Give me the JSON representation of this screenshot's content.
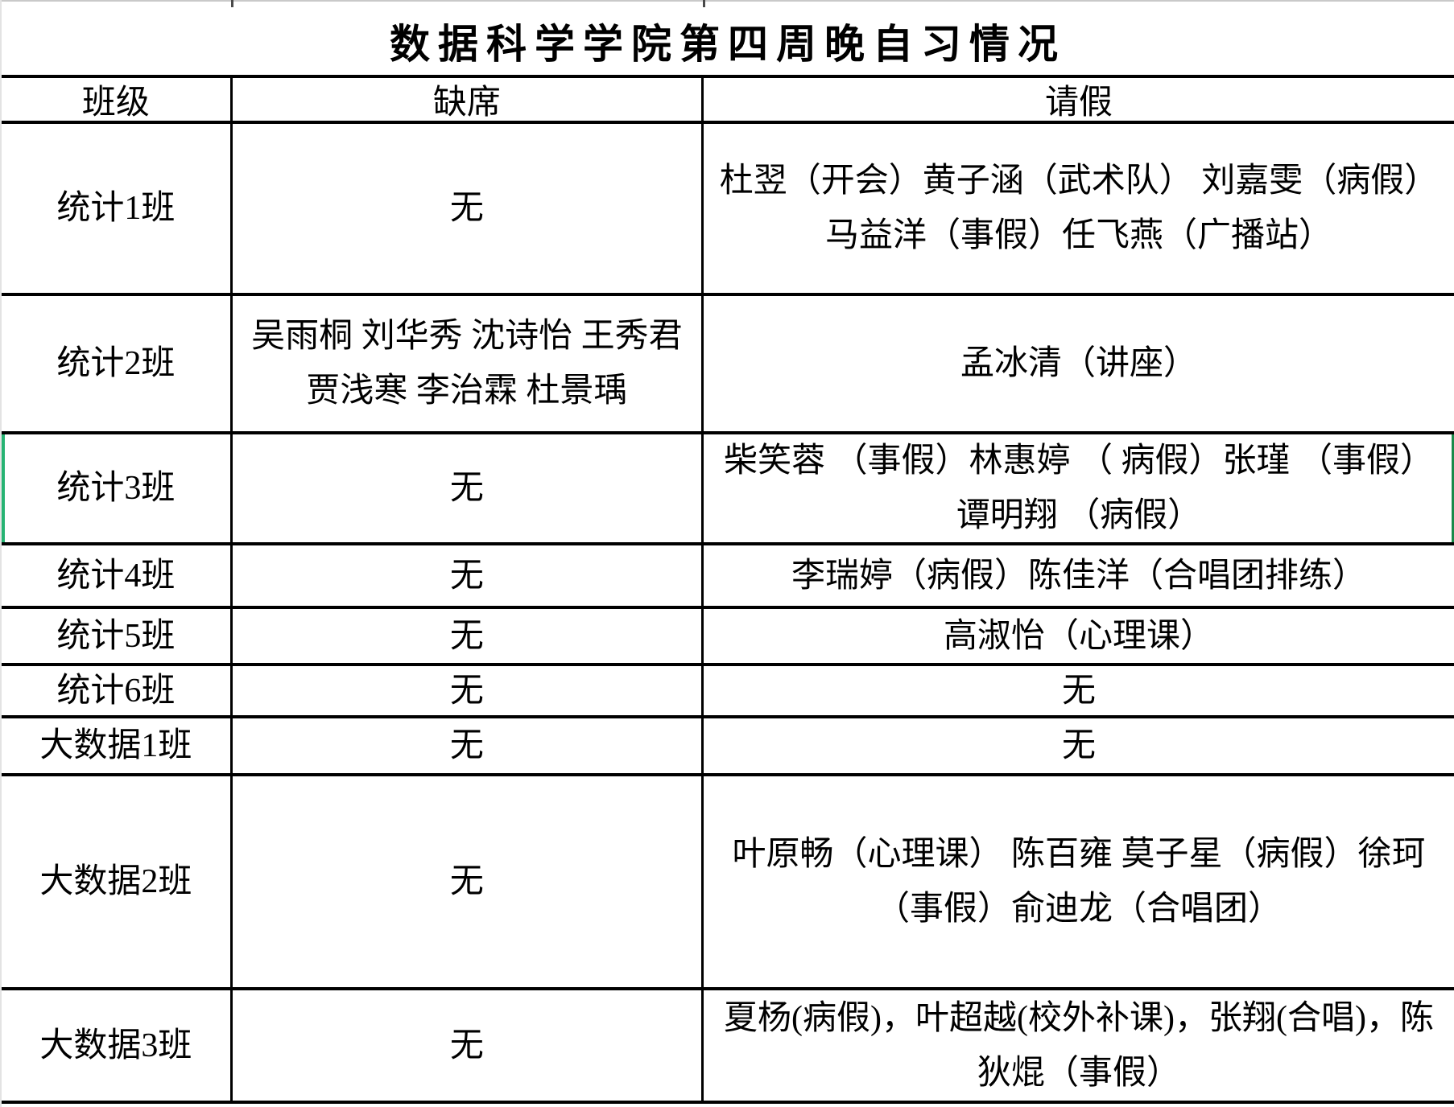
{
  "sheet": {
    "title": "数据科学学院第四周晚自习情况",
    "columns": [
      {
        "label": "班级"
      },
      {
        "label": "缺席"
      },
      {
        "label": "请假"
      }
    ],
    "rows": [
      {
        "class_name": "统计1班",
        "absent": "无",
        "leave": "杜翌（开会）黄子涵（武术队） 刘嘉雯（病假） 马益洋（事假）任飞燕（广播站）"
      },
      {
        "class_name": "统计2班",
        "absent": "吴雨桐 刘华秀 沈诗怡 王秀君 贾浅寒 李治霖 杜景瑀",
        "leave": "孟冰清（讲座）"
      },
      {
        "class_name": "统计3班",
        "absent": "无",
        "leave": "柴笑蓉 （事假）林惠婷 （ 病假）张瑾 （事假）谭明翔 （病假）"
      },
      {
        "class_name": "统计4班",
        "absent": "无",
        "leave": "李瑞婷（病假）陈佳洋（合唱团排练）"
      },
      {
        "class_name": "统计5班",
        "absent": "无",
        "leave": "高淑怡（心理课）"
      },
      {
        "class_name": "统计6班",
        "absent": "无",
        "leave": "无"
      },
      {
        "class_name": "大数据1班",
        "absent": "无",
        "leave": "无"
      },
      {
        "class_name": "大数据2班",
        "absent": "无",
        "leave": "叶原畅（心理课） 陈百雍 莫子星（病假）徐珂（事假）俞迪龙（合唱团）"
      },
      {
        "class_name": "大数据3班",
        "absent": "无",
        "leave": "夏杨(病假)，叶超越(校外补课)，张翔(合唱)，陈狄焜（事假）"
      }
    ]
  },
  "indicators": {
    "selected_row": "统计3班",
    "error_marker": {
      "row": "大数据2班",
      "column": "请假"
    }
  },
  "colors": {
    "selection_green": "#26b373",
    "selection_edge_green": "#1a8a4a",
    "error_indicator_green": "#1e7e34",
    "border_black": "#000000"
  }
}
